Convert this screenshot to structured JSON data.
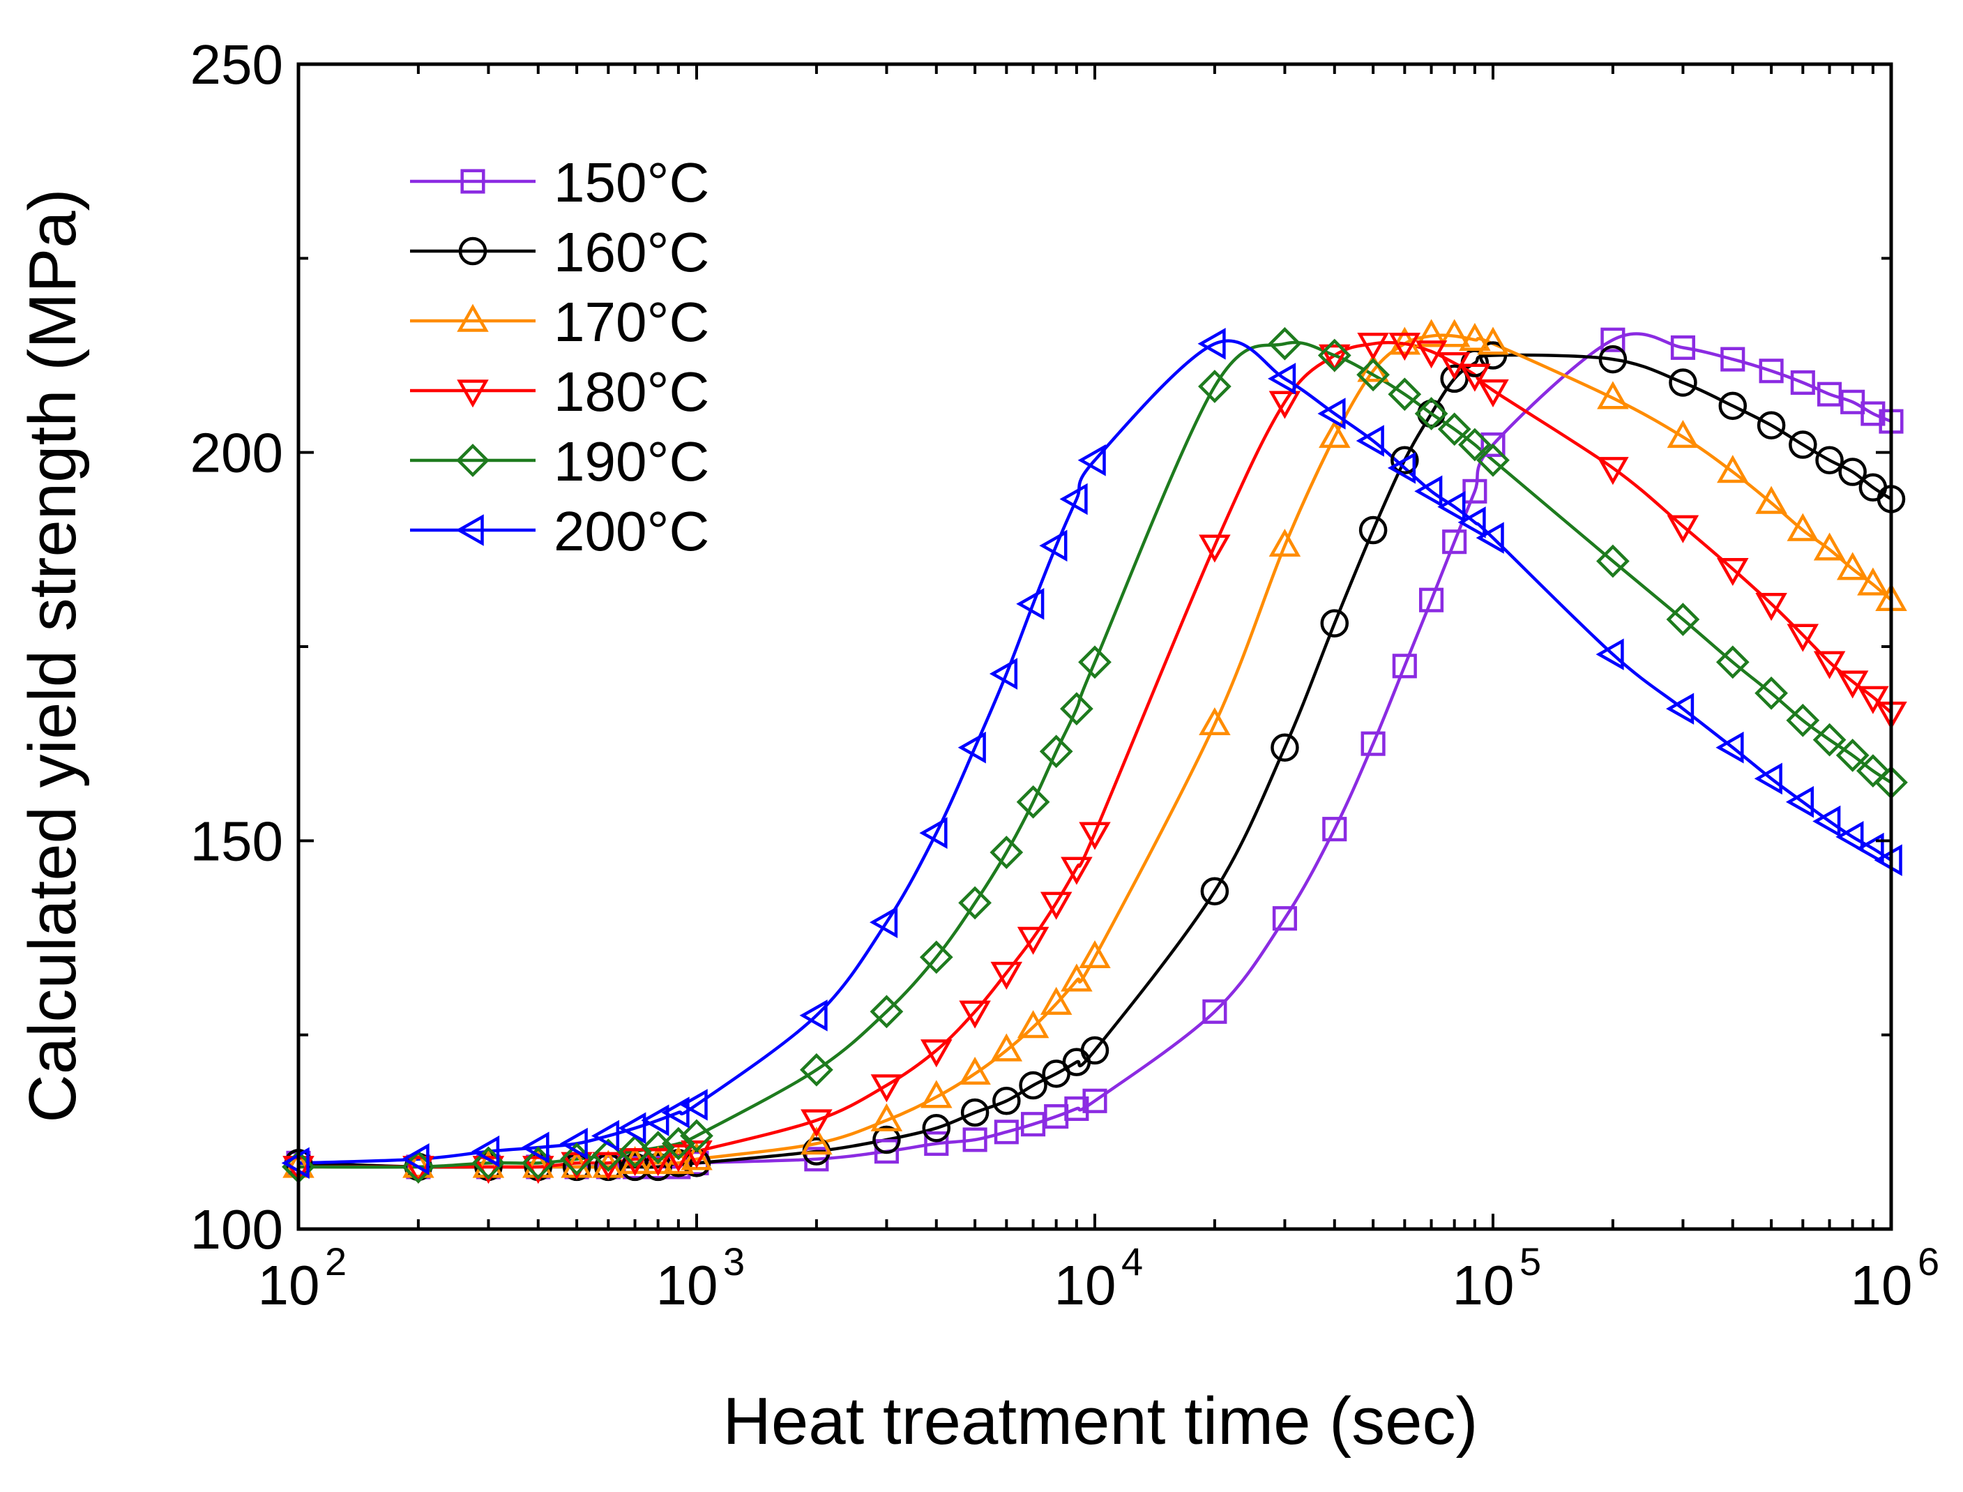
{
  "chart_data": {
    "type": "line",
    "title": "",
    "xlabel": "Heat treatment time (sec)",
    "ylabel": "Calculated yield strength (MPa)",
    "xscale": "log",
    "xlim": [
      100,
      1000000
    ],
    "ylim": [
      100,
      250
    ],
    "grid": false,
    "legend_position": "top-left",
    "x_ticks": [
      {
        "value": 100,
        "base": "10",
        "exp": "2"
      },
      {
        "value": 1000,
        "base": "10",
        "exp": "3"
      },
      {
        "value": 10000,
        "base": "10",
        "exp": "4"
      },
      {
        "value": 100000,
        "base": "10",
        "exp": "5"
      },
      {
        "value": 1000000,
        "base": "10",
        "exp": "6"
      }
    ],
    "y_ticks": [
      {
        "value": 100,
        "label": "100"
      },
      {
        "value": 150,
        "label": "150"
      },
      {
        "value": 200,
        "label": "200"
      },
      {
        "value": 250,
        "label": "250"
      }
    ],
    "y_minor_ticks": [
      125,
      175,
      225
    ],
    "series": [
      {
        "name": "150°C",
        "color": "#8b2be2",
        "marker": "square",
        "x": [
          100,
          200,
          300,
          400,
          500,
          600,
          700,
          800,
          900,
          1000,
          2000,
          3000,
          4000,
          5000,
          6000,
          7000,
          8000,
          9000,
          10000,
          20000,
          30000,
          40000,
          50000,
          60000,
          70000,
          80000,
          90000,
          100000,
          200000,
          300000,
          400000,
          500000,
          600000,
          700000,
          800000,
          900000,
          1000000
        ],
        "y": [
          108.5,
          108,
          108,
          108,
          108,
          108,
          108,
          108,
          108,
          108.5,
          109,
          110,
          111,
          111.5,
          112.5,
          113.5,
          114.5,
          115.5,
          116.5,
          128,
          140,
          151.5,
          162.5,
          172.5,
          181,
          188.5,
          195,
          201,
          214.5,
          213.5,
          212,
          210.5,
          209,
          207.5,
          206.5,
          205,
          204
        ]
      },
      {
        "name": "160°C",
        "color": "#000000",
        "marker": "circle",
        "x": [
          100,
          200,
          300,
          400,
          500,
          600,
          700,
          800,
          900,
          1000,
          2000,
          3000,
          4000,
          5000,
          6000,
          7000,
          8000,
          9000,
          10000,
          20000,
          30000,
          40000,
          50000,
          60000,
          70000,
          80000,
          90000,
          100000,
          200000,
          300000,
          400000,
          500000,
          600000,
          700000,
          800000,
          900000,
          1000000
        ],
        "y": [
          108.5,
          108,
          108,
          108,
          108,
          108,
          108,
          108,
          108.5,
          108.5,
          110,
          111.5,
          113,
          115,
          116.5,
          118.5,
          120,
          121.5,
          123,
          143.5,
          162,
          178,
          190,
          199,
          205,
          209.5,
          211.5,
          212.5,
          212,
          209,
          206,
          203.5,
          201,
          199,
          197.5,
          195.5,
          194
        ]
      },
      {
        "name": "170°C",
        "color": "#ff8c00",
        "marker": "triangle-up",
        "x": [
          100,
          200,
          300,
          400,
          500,
          600,
          700,
          800,
          900,
          1000,
          2000,
          3000,
          4000,
          5000,
          6000,
          7000,
          8000,
          9000,
          10000,
          20000,
          30000,
          40000,
          50000,
          60000,
          70000,
          80000,
          90000,
          100000,
          200000,
          300000,
          400000,
          500000,
          600000,
          700000,
          800000,
          900000,
          1000000
        ],
        "y": [
          108,
          108,
          108,
          108,
          108,
          108,
          108.5,
          108.5,
          108.5,
          109,
          111,
          114,
          117,
          120,
          123,
          126,
          129,
          132,
          135,
          165,
          188,
          202,
          210.5,
          214,
          215,
          215,
          214.5,
          214,
          207,
          202,
          197.5,
          193.5,
          190,
          187.5,
          185,
          183,
          181
        ]
      },
      {
        "name": "180°C",
        "color": "#ff0000",
        "marker": "triangle-down",
        "x": [
          100,
          200,
          300,
          400,
          500,
          600,
          700,
          800,
          900,
          1000,
          2000,
          3000,
          4000,
          5000,
          6000,
          7000,
          8000,
          9000,
          10000,
          20000,
          30000,
          40000,
          50000,
          60000,
          70000,
          80000,
          90000,
          100000,
          200000,
          300000,
          400000,
          500000,
          600000,
          700000,
          800000,
          900000,
          1000000
        ],
        "y": [
          108,
          108,
          108,
          108,
          108.5,
          108.5,
          109,
          109,
          109.5,
          110,
          114,
          118.5,
          123,
          128,
          133,
          137.5,
          142,
          146.5,
          151,
          188,
          206.5,
          212.5,
          214,
          214,
          213,
          211.5,
          210,
          208,
          198,
          190.5,
          185,
          180.5,
          176.5,
          173,
          170.5,
          168.5,
          166.5
        ]
      },
      {
        "name": "190°C",
        "color": "#1e7b1e",
        "marker": "diamond",
        "x": [
          100,
          200,
          300,
          400,
          500,
          600,
          700,
          800,
          900,
          1000,
          2000,
          3000,
          4000,
          5000,
          6000,
          7000,
          8000,
          9000,
          10000,
          20000,
          30000,
          40000,
          50000,
          60000,
          70000,
          80000,
          90000,
          100000,
          200000,
          300000,
          400000,
          500000,
          600000,
          700000,
          800000,
          900000,
          1000000
        ],
        "y": [
          108,
          108,
          108.5,
          108.5,
          109,
          109.5,
          110,
          110.5,
          111,
          112,
          120.5,
          128,
          135,
          142,
          148.5,
          155,
          161.5,
          167,
          173,
          208.5,
          214,
          212.5,
          210,
          207.5,
          205,
          203,
          201,
          199,
          186,
          178.5,
          173,
          169,
          165.5,
          163,
          161,
          159,
          157.5
        ]
      },
      {
        "name": "200°C",
        "color": "#0000ff",
        "marker": "triangle-left",
        "x": [
          100,
          200,
          300,
          400,
          500,
          600,
          700,
          800,
          900,
          1000,
          2000,
          3000,
          4000,
          5000,
          6000,
          7000,
          8000,
          9000,
          10000,
          20000,
          30000,
          40000,
          50000,
          60000,
          70000,
          80000,
          90000,
          100000,
          200000,
          300000,
          400000,
          500000,
          600000,
          700000,
          800000,
          900000,
          1000000
        ],
        "y": [
          108.5,
          109,
          110,
          110.5,
          111,
          112,
          113,
          114,
          115,
          116,
          127.5,
          139.5,
          151,
          162,
          171.5,
          180.5,
          188,
          194,
          199,
          214,
          209.5,
          205,
          201.5,
          198,
          195,
          193,
          191,
          189,
          174,
          167,
          162,
          158,
          155,
          152.5,
          150.5,
          149,
          147.5
        ]
      }
    ]
  }
}
